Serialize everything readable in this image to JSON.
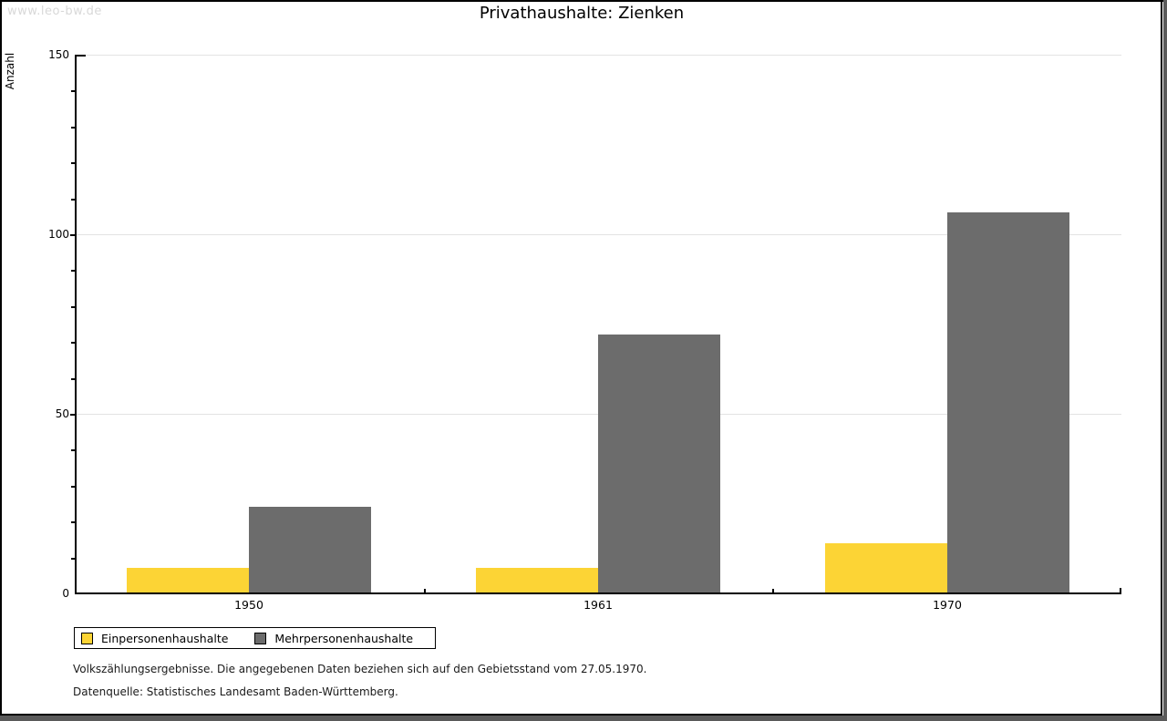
{
  "watermark": "www.leo-bw.de",
  "footer": {
    "line1": "Volkszählungsergebnisse. Die angegebenen Daten beziehen sich auf den Gebietsstand vom 27.05.1970.",
    "line2": "Datenquelle: Statistisches Landesamt Baden-Württemberg."
  },
  "chart_data": {
    "type": "bar",
    "title": "Privathaushalte: Zienken",
    "xlabel": "",
    "ylabel": "Anzahl",
    "categories": [
      "1950",
      "1961",
      "1970"
    ],
    "series": [
      {
        "name": "Einpersonenhaushalte",
        "color": "#FCD435",
        "values": [
          7,
          7,
          14
        ]
      },
      {
        "name": "Mehrpersonenhaushalte",
        "color": "#6C6C6C",
        "values": [
          24,
          72,
          106
        ]
      }
    ],
    "ylim": [
      0,
      150
    ],
    "y_major_ticks": [
      0,
      50,
      100,
      150
    ],
    "y_minor_step": 10,
    "grid": true,
    "gridline_color": "#e3e3e3",
    "legend_position": "bottom"
  }
}
